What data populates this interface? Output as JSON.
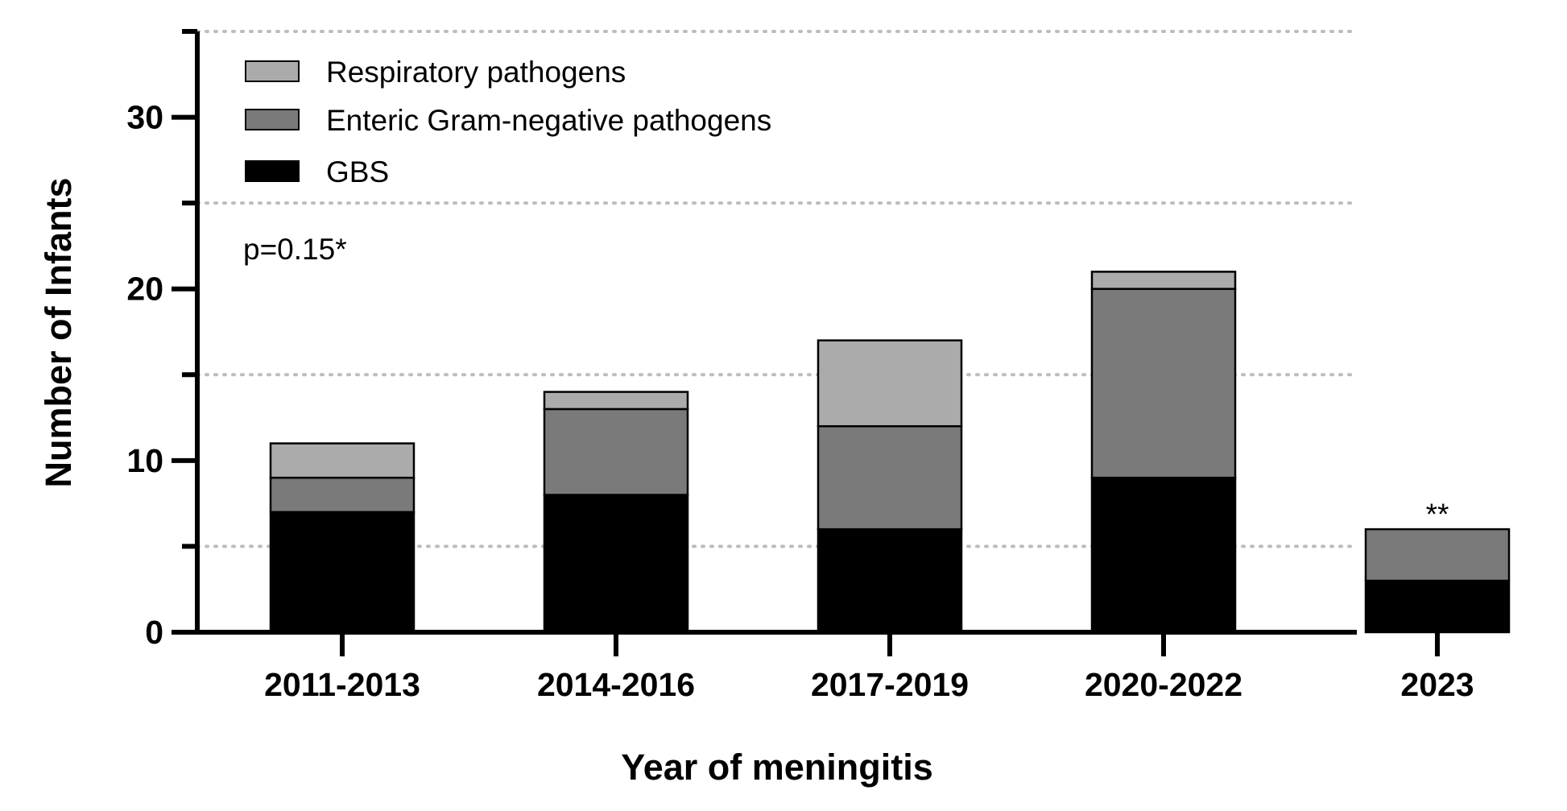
{
  "chart_data": {
    "type": "bar",
    "stacked": true,
    "categories": [
      "2011-2013",
      "2014-2016",
      "2017-2019",
      "2020-2022",
      "2023"
    ],
    "series": [
      {
        "name": "GBS",
        "values": [
          7,
          8,
          6,
          9,
          3
        ],
        "color": "#000000"
      },
      {
        "name": "Enteric Gram-negative pathogens",
        "values": [
          2,
          5,
          6,
          11,
          3
        ],
        "color": "#7a7a7a"
      },
      {
        "name": "Respiratory pathogens",
        "values": [
          2,
          1,
          5,
          1,
          0
        ],
        "color": "#ababab"
      }
    ],
    "legend_order": [
      "Respiratory pathogens",
      "Enteric Gram-negative pathogens",
      "GBS"
    ],
    "xlabel": "Year of meningitis",
    "ylabel": "Number of Infants",
    "ylim": [
      0,
      35
    ],
    "yticks": [
      0,
      10,
      20,
      30
    ],
    "yticks_minor": [
      5,
      15,
      25,
      35
    ],
    "grid": "horizontal dotted at 5, 15, 25, 35",
    "legend_position": "top-left",
    "annotations": [
      {
        "text": "p=0.15*",
        "position": "upper-left"
      },
      {
        "text": "**",
        "category": "2023",
        "placement": "above-bar"
      }
    ]
  }
}
